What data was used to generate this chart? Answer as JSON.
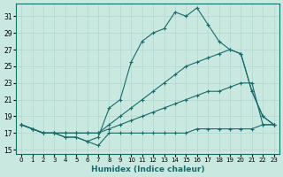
{
  "xlabel": "Humidex (Indice chaleur)",
  "ylabel": "",
  "background_color": "#c8e8e0",
  "line_color": "#1a6b6b",
  "grid_color": "#b0d8d0",
  "xlim": [
    -0.5,
    23.5
  ],
  "ylim": [
    14.5,
    32.5
  ],
  "xticks": [
    0,
    1,
    2,
    3,
    4,
    5,
    6,
    7,
    8,
    9,
    10,
    11,
    12,
    13,
    14,
    15,
    16,
    17,
    18,
    19,
    20,
    21,
    22,
    23
  ],
  "yticks": [
    15,
    17,
    19,
    21,
    23,
    25,
    27,
    29,
    31
  ],
  "series": [
    [
      18,
      17.5,
      17,
      17,
      17,
      17,
      17,
      17,
      17.5,
      18,
      18.5,
      19,
      19.5,
      20,
      20.5,
      21,
      21.5,
      22,
      22,
      22.5,
      23,
      23,
      18,
      18
    ],
    [
      18,
      17.5,
      17,
      17,
      17,
      17,
      17,
      17,
      18,
      19,
      20,
      21,
      22,
      23,
      24,
      25,
      25.5,
      26,
      26.5,
      27,
      26.5,
      22,
      19,
      18
    ],
    [
      18,
      17.5,
      17,
      17,
      16.5,
      16.5,
      16,
      15.5,
      17,
      17,
      17,
      17,
      17,
      17,
      17,
      17,
      17.5,
      17.5,
      17.5,
      17.5,
      17.5,
      17.5,
      18,
      18
    ],
    [
      18,
      17.5,
      17,
      17,
      16.5,
      16.5,
      16,
      16.5,
      20,
      21,
      25.5,
      28,
      29,
      29.5,
      31.5,
      31,
      32,
      30,
      28,
      27,
      26.5,
      22,
      19,
      18
    ]
  ]
}
